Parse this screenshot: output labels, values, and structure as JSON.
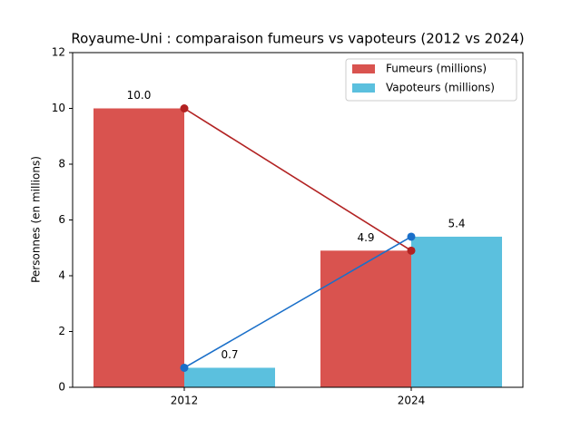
{
  "chart_data": {
    "type": "bar",
    "title": "Royaume-Uni : comparaison fumeurs vs vapoteurs (2012 vs 2024)",
    "y_label": "Personnes (en millions)",
    "categories": [
      "2012",
      "2024"
    ],
    "series": [
      {
        "name": "Fumeurs (millions)",
        "color": "#d9534f",
        "line_color": "#b22222",
        "values": [
          10,
          4.9
        ],
        "value_labels": [
          "10.0",
          "4.9"
        ]
      },
      {
        "name": "Vapoteurs (millions)",
        "color": "#5bc0de",
        "line_color": "#1a6fc9",
        "values": [
          0.7,
          5.4
        ]
      }
    ],
    "ylim": [
      0,
      12
    ],
    "yticks": [
      0,
      2,
      4,
      6,
      8,
      10,
      12
    ],
    "legend": "upper right"
  }
}
